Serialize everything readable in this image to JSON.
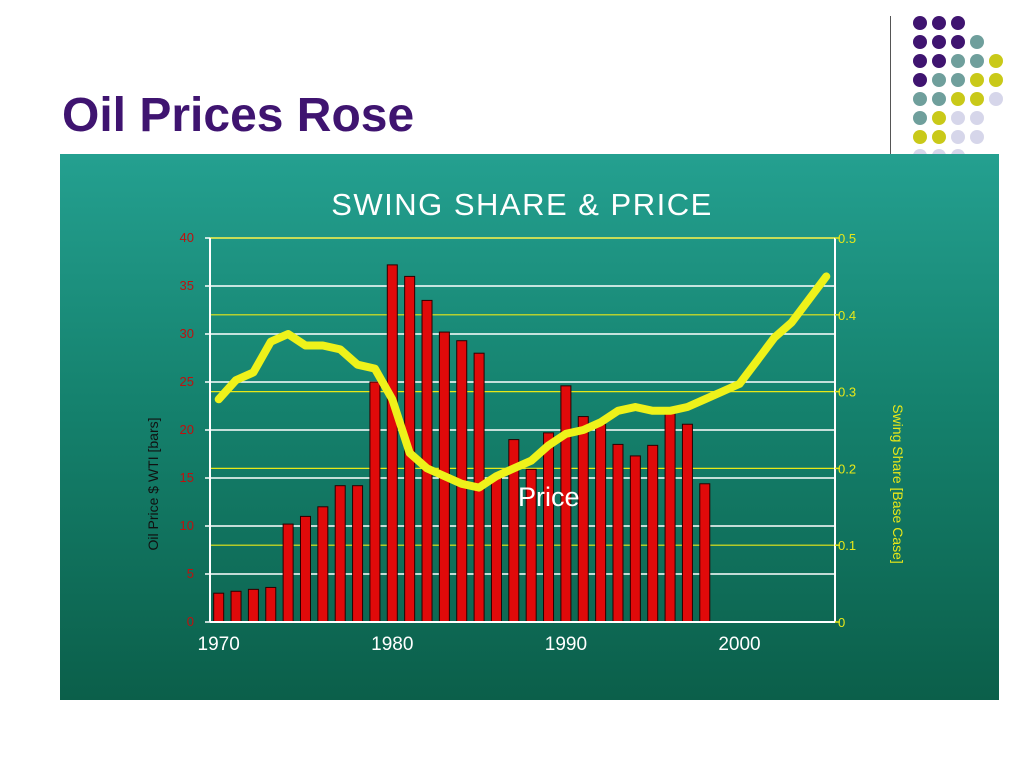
{
  "slide": {
    "title": "Oil Prices Rose"
  },
  "colors": {
    "title": "#3f1470",
    "bar_fill": "#e00a0a",
    "line": "#eef21a",
    "dot_purple": "#3f1470",
    "dot_teal": "#6f9f9c",
    "dot_yellow": "#c9c919",
    "dot_lavender": "#d6d6ea"
  },
  "chart_data": {
    "type": "bar",
    "title": "SWING SHARE & PRICE",
    "ylabel": "Oil Price $ WTI [bars]",
    "y2label": "Swing Share [Base Case]",
    "annotation": "Price",
    "ylim": [
      0,
      40
    ],
    "y2lim": [
      0,
      0.5
    ],
    "xlim": [
      1969.5,
      2005.5
    ],
    "yticks": [
      "0",
      "5",
      "10",
      "15",
      "20",
      "25",
      "30",
      "35",
      "40"
    ],
    "y2ticks": [
      "0",
      "0.1",
      "0.2",
      "0.3",
      "0.4",
      "0.5"
    ],
    "xticks": [
      "1970",
      "1980",
      "1990",
      "2000"
    ],
    "grid": true,
    "series": [
      {
        "type": "bar",
        "x": [
          1970,
          1971,
          1972,
          1973,
          1974,
          1975,
          1976,
          1977,
          1978,
          1979,
          1980,
          1981,
          1982,
          1983,
          1984,
          1985,
          1986,
          1987,
          1988,
          1989,
          1990,
          1991,
          1992,
          1993,
          1994,
          1995,
          1996,
          1997,
          1998
        ],
        "values": [
          3.0,
          3.2,
          3.4,
          3.6,
          10.2,
          11.0,
          12.0,
          14.2,
          14.2,
          25.0,
          37.2,
          36.0,
          33.5,
          30.2,
          29.3,
          28.0,
          15.0,
          19.0,
          15.9,
          19.7,
          24.6,
          21.4,
          20.6,
          18.5,
          17.3,
          18.4,
          22.1,
          20.6,
          14.4
        ],
        "axis": "left"
      },
      {
        "type": "line",
        "x": [
          1970,
          1971,
          1972,
          1973,
          1974,
          1975,
          1976,
          1977,
          1978,
          1979,
          1980,
          1981,
          1982,
          1983,
          1984,
          1985,
          1986,
          1987,
          1988,
          1989,
          1990,
          1991,
          1992,
          1993,
          1994,
          1995,
          1996,
          1997,
          1998,
          1999,
          2000,
          2001,
          2002,
          2003,
          2004,
          2005
        ],
        "values": [
          0.29,
          0.315,
          0.325,
          0.365,
          0.375,
          0.36,
          0.36,
          0.355,
          0.335,
          0.33,
          0.29,
          0.22,
          0.2,
          0.19,
          0.18,
          0.175,
          0.19,
          0.2,
          0.21,
          0.23,
          0.245,
          0.25,
          0.26,
          0.275,
          0.28,
          0.275,
          0.275,
          0.28,
          0.29,
          0.3,
          0.31,
          0.34,
          0.37,
          0.39,
          0.42,
          0.45
        ],
        "axis": "right"
      }
    ]
  }
}
